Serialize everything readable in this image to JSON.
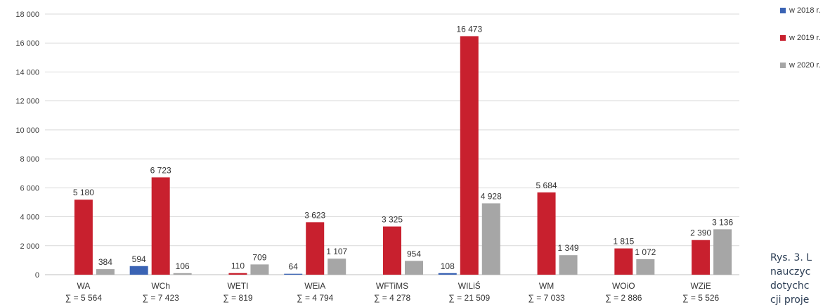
{
  "chart_data": {
    "type": "bar",
    "title": "",
    "xlabel": "",
    "ylabel": "",
    "ylim": [
      0,
      18000
    ],
    "yticks": [
      "0",
      "2 000",
      "4 000",
      "6 000",
      "8 000",
      "10 000",
      "12 000",
      "14 000",
      "16 000",
      "18 000"
    ],
    "categories": [
      "WA",
      "WCh",
      "WETI",
      "WEiA",
      "WFTiMS",
      "WILiŚ",
      "WM",
      "WOiO",
      "WZiE"
    ],
    "category_sums": [
      "∑ = 5 564",
      "∑ = 7 423",
      "∑ = 819",
      "∑ = 4 794",
      "∑ = 4 278",
      "∑ = 21 509",
      "∑ = 7 033",
      "∑ = 2 886",
      "∑ = 5 526"
    ],
    "series": [
      {
        "name": "w 2018 r.",
        "color": "#3a63b4",
        "values": [
          0,
          594,
          0,
          64,
          0,
          108,
          0,
          0,
          0
        ],
        "labels": [
          "",
          "594",
          "",
          "64",
          "",
          "108",
          "",
          "",
          ""
        ]
      },
      {
        "name": "w 2019 r.",
        "color": "#c8202e",
        "values": [
          5180,
          6723,
          110,
          3623,
          3325,
          16473,
          5684,
          1815,
          2390
        ],
        "labels": [
          "5 180",
          "6 723",
          "110",
          "3 623",
          "3 325",
          "16 473",
          "5 684",
          "1 815",
          "2 390"
        ]
      },
      {
        "name": "w 2020 r.",
        "color": "#a6a6a6",
        "values": [
          384,
          106,
          709,
          1107,
          954,
          4928,
          1349,
          1072,
          3136
        ],
        "labels": [
          "384",
          "106",
          "709",
          "1 107",
          "954",
          "4 928",
          "1 349",
          "1 072",
          "3 136"
        ]
      }
    ],
    "grid": true,
    "legend_position": "top-right"
  },
  "caption_lines": [
    "Rys. 3. L",
    "nauczyc",
    "dotychc",
    "cji proje"
  ]
}
